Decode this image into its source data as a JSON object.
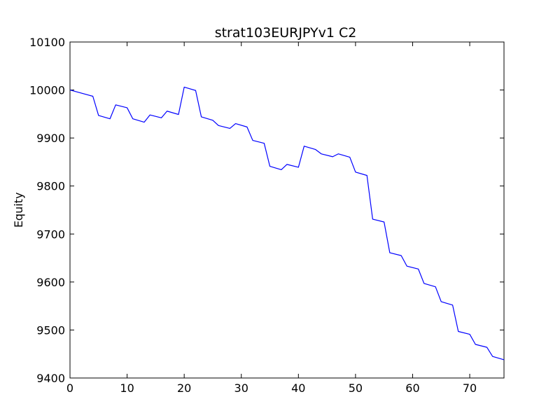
{
  "chart_data": {
    "type": "line",
    "title": "strat103EURJPYv1 C2",
    "xlabel": "",
    "ylabel": "Equity",
    "xlim": [
      0,
      76
    ],
    "ylim": [
      9400,
      10100
    ],
    "xticks": [
      0,
      10,
      20,
      30,
      40,
      50,
      60,
      70
    ],
    "yticks": [
      9400,
      9500,
      9600,
      9700,
      9800,
      9900,
      10000,
      10100
    ],
    "grid": false,
    "series": [
      {
        "name": "",
        "color": "#0000ff",
        "x": [
          0,
          4,
          5,
          7,
          8,
          10,
          11,
          13,
          14,
          16,
          17,
          19,
          20,
          22,
          23,
          25,
          26,
          28,
          29,
          31,
          32,
          34,
          35,
          37,
          38,
          40,
          41,
          43,
          44,
          46,
          47,
          49,
          50,
          52,
          53,
          55,
          56,
          58,
          59,
          61,
          62,
          64,
          65,
          67,
          68,
          70,
          71,
          73,
          74,
          76
        ],
        "y": [
          10000,
          9987,
          9947,
          9940,
          9969,
          9963,
          9940,
          9933,
          9948,
          9942,
          9956,
          9949,
          10006,
          9999,
          9944,
          9937,
          9926,
          9920,
          9930,
          9923,
          9895,
          9889,
          9841,
          9834,
          9845,
          9839,
          9883,
          9876,
          9867,
          9861,
          9867,
          9860,
          9829,
          9822,
          9731,
          9725,
          9661,
          9655,
          9633,
          9627,
          9597,
          9590,
          9559,
          9552,
          9497,
          9491,
          9470,
          9464,
          9445,
          9438
        ]
      }
    ]
  }
}
